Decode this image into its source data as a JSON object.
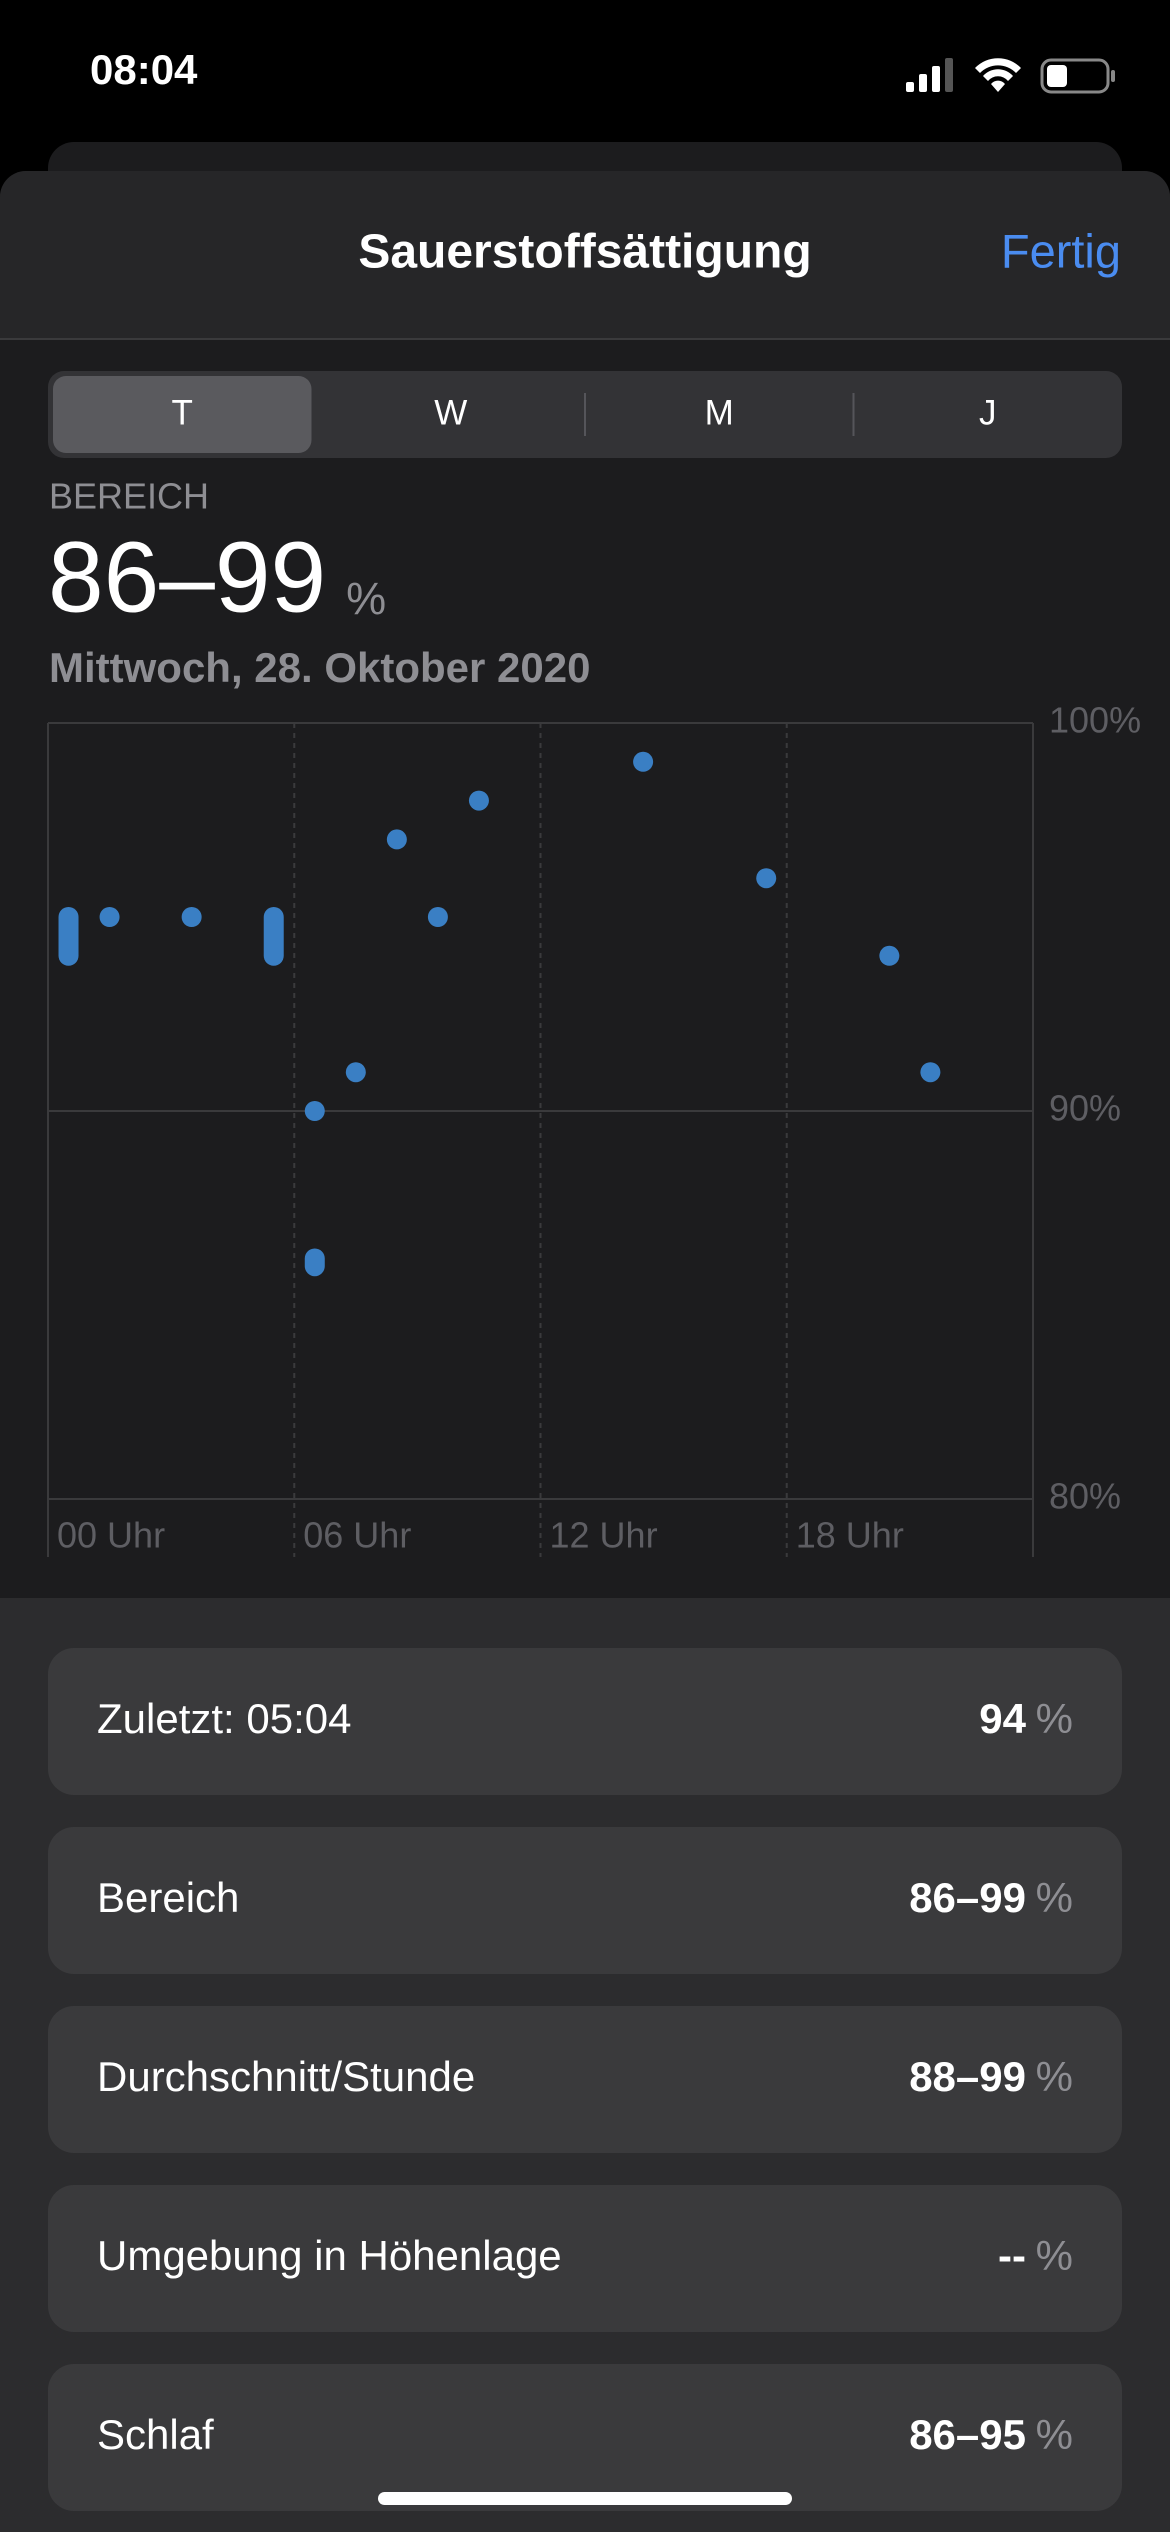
{
  "status_bar": {
    "time": "08:04"
  },
  "header": {
    "title": "Sauerstoffsättigung",
    "done": "Fertig"
  },
  "segments": {
    "items": [
      "T",
      "W",
      "M",
      "J"
    ],
    "selected": 0
  },
  "summary": {
    "label": "BEREICH",
    "value": "86–99",
    "unit": "%",
    "date": "Mittwoch, 28. Oktober 2020"
  },
  "chart_data": {
    "type": "scatter",
    "color": "#3a7fc4",
    "x": [
      0.5,
      1.5,
      3.5,
      5.5,
      6.5,
      6.5,
      7.5,
      8.5,
      9.5,
      10.5,
      14.5,
      17.5,
      20.5,
      21.5
    ],
    "min": [
      94,
      95,
      95,
      94,
      90,
      86,
      91,
      97,
      95,
      98,
      99,
      96,
      94,
      91
    ],
    "max": [
      95,
      95,
      95,
      95,
      90,
      86.2,
      91,
      97,
      95,
      98,
      99,
      96,
      94,
      91
    ],
    "xlim": [
      0,
      24
    ],
    "xticks": [
      {
        "value": 0,
        "label": "00 Uhr"
      },
      {
        "value": 6,
        "label": "06 Uhr"
      },
      {
        "value": 12,
        "label": "12 Uhr"
      },
      {
        "value": 18,
        "label": "18 Uhr"
      }
    ],
    "ylim": [
      80,
      100
    ],
    "yticks": [
      {
        "value": 80,
        "label": "80%"
      },
      {
        "value": 90,
        "label": "90%"
      },
      {
        "value": 100,
        "label": "100%"
      }
    ],
    "grid": true
  },
  "stats": [
    {
      "label": "Zuletzt: 05:04",
      "value": "94",
      "unit": "%"
    },
    {
      "label": "Bereich",
      "value": "86–99",
      "unit": "%"
    },
    {
      "label": "Durchschnitt/Stunde",
      "value": "88–99",
      "unit": "%"
    },
    {
      "label": "Umgebung in Höhenlage",
      "value": "--",
      "unit": "%"
    },
    {
      "label": "Schlaf",
      "value": "86–95",
      "unit": "%"
    }
  ]
}
